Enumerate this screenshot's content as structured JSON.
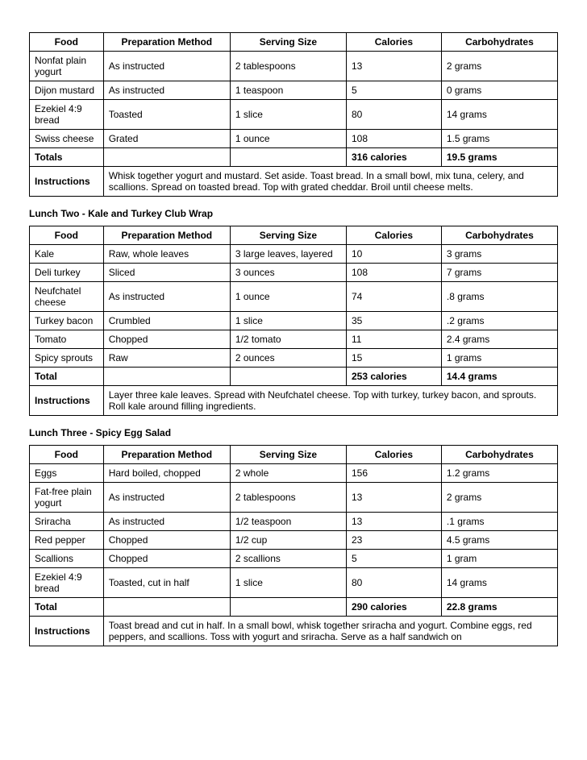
{
  "columns": [
    "Food",
    "Preparation Method",
    "Serving Size",
    "Calories",
    "Carbohydrates"
  ],
  "instructions_label": "Instructions",
  "table1": {
    "rows": [
      [
        "Nonfat plain yogurt",
        "As instructed",
        "2 tablespoons",
        "13",
        "2 grams"
      ],
      [
        "Dijon mustard",
        "As instructed",
        "1 teaspoon",
        "5",
        "0 grams"
      ],
      [
        "Ezekiel 4:9 bread",
        "Toasted",
        "1 slice",
        "80",
        "14 grams"
      ],
      [
        "Swiss cheese",
        "Grated",
        "1 ounce",
        "108",
        "1.5 grams"
      ]
    ],
    "totals_label": "Totals",
    "totals_cal": "316 calories",
    "totals_carb": "19.5 grams",
    "instructions": "Whisk together yogurt and mustard. Set aside. Toast bread. In a small bowl, mix tuna, celery, and scallions. Spread on toasted bread. Top with grated cheddar. Broil until cheese melts."
  },
  "section2_title": "Lunch Two - Kale and Turkey Club Wrap",
  "table2": {
    "rows": [
      [
        "Kale",
        "Raw, whole leaves",
        "3 large leaves, layered",
        "10",
        "3 grams"
      ],
      [
        "Deli turkey",
        "Sliced",
        "3 ounces",
        "108",
        "7 grams"
      ],
      [
        "Neufchatel cheese",
        "As instructed",
        "1 ounce",
        "74",
        ".8 grams"
      ],
      [
        "Turkey bacon",
        "Crumbled",
        "1 slice",
        "35",
        ".2 grams"
      ],
      [
        "Tomato",
        "Chopped",
        "1/2 tomato",
        "11",
        "2.4 grams"
      ],
      [
        "Spicy sprouts",
        "Raw",
        "2 ounces",
        "15",
        "1 grams"
      ]
    ],
    "totals_label": "Total",
    "totals_cal": "253 calories",
    "totals_carb": "14.4 grams",
    "instructions": "Layer three kale leaves. Spread with Neufchatel cheese. Top with turkey, turkey bacon, and sprouts. Roll kale around filling ingredients."
  },
  "section3_title": "Lunch Three - Spicy Egg Salad",
  "table3": {
    "rows": [
      [
        "Eggs",
        "Hard boiled, chopped",
        "2 whole",
        "156",
        "1.2 grams"
      ],
      [
        "Fat-free plain yogurt",
        "As instructed",
        "2 tablespoons",
        "13",
        "2 grams"
      ],
      [
        "Sriracha",
        "As instructed",
        "1/2 teaspoon",
        "13",
        ".1 grams"
      ],
      [
        "Red pepper",
        "Chopped",
        "1/2 cup",
        "23",
        "4.5 grams"
      ],
      [
        "Scallions",
        "Chopped",
        "2 scallions",
        "5",
        "1 gram"
      ],
      [
        "Ezekiel 4:9 bread",
        "Toasted, cut in half",
        "1 slice",
        "80",
        "14 grams"
      ]
    ],
    "totals_label": "Total",
    "totals_cal": "290 calories",
    "totals_carb": "22.8 grams",
    "instructions": "Toast bread and cut in half. In a small bowl, whisk together sriracha and yogurt. Combine eggs, red peppers, and scallions. Toss with yogurt and sriracha. Serve as a half sandwich on"
  }
}
